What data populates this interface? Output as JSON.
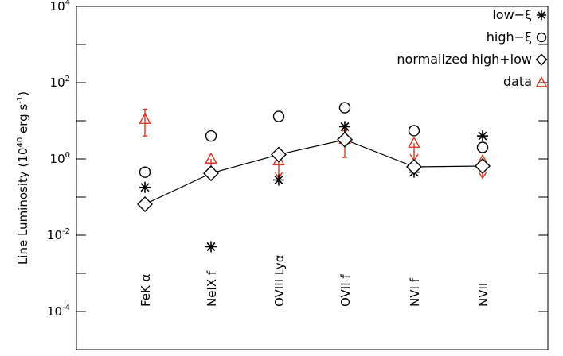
{
  "chart_data": {
    "type": "scatter",
    "title": "",
    "ylabel": "Line Luminosity (10",
    "ylabel_sup": "40",
    "ylabel_tail": " erg s",
    "ylabel_sup2": "-1",
    "ylabel_close": ")",
    "yscale": "log",
    "ylim": [
      1e-05,
      10000
    ],
    "y_tick_labels": [
      {
        "base": "10",
        "exp": "4",
        "value": 10000
      },
      {
        "base": "10",
        "exp": "2",
        "value": 100
      },
      {
        "base": "10",
        "exp": "0",
        "value": 1
      },
      {
        "base": "10",
        "exp": "-2",
        "value": 0.01
      },
      {
        "base": "10",
        "exp": "-4",
        "value": 0.0001
      }
    ],
    "categories": [
      "FeK α",
      "NeIX f",
      "OVIII Lyα",
      "OVII f",
      "NVI f",
      "NVII"
    ],
    "series": [
      {
        "name": "low−ξ",
        "marker": "asterisk",
        "color": "#000000",
        "values": [
          0.18,
          0.005,
          0.28,
          7.0,
          0.45,
          4.0
        ]
      },
      {
        "name": "high−ξ",
        "marker": "circle",
        "color": "#000000",
        "values": [
          0.45,
          4.0,
          13.0,
          22.0,
          5.5,
          2.0
        ]
      },
      {
        "name": "normalized high+low",
        "marker": "diamond",
        "color": "#000000",
        "line": true,
        "values": [
          0.065,
          0.42,
          1.3,
          3.2,
          0.62,
          0.65
        ]
      },
      {
        "name": "data",
        "marker": "triangle",
        "color": "#e8321e",
        "values": [
          11.0,
          1.0,
          0.9,
          3.3,
          2.6,
          0.9
        ],
        "err_low": [
          4.0,
          null,
          null,
          1.1,
          null,
          null
        ],
        "err_high": [
          20.0,
          null,
          null,
          5.5,
          null,
          null
        ],
        "upper_limit": [
          false,
          true,
          true,
          false,
          true,
          true
        ]
      }
    ],
    "legend_placement": "top-right",
    "grid": false
  }
}
